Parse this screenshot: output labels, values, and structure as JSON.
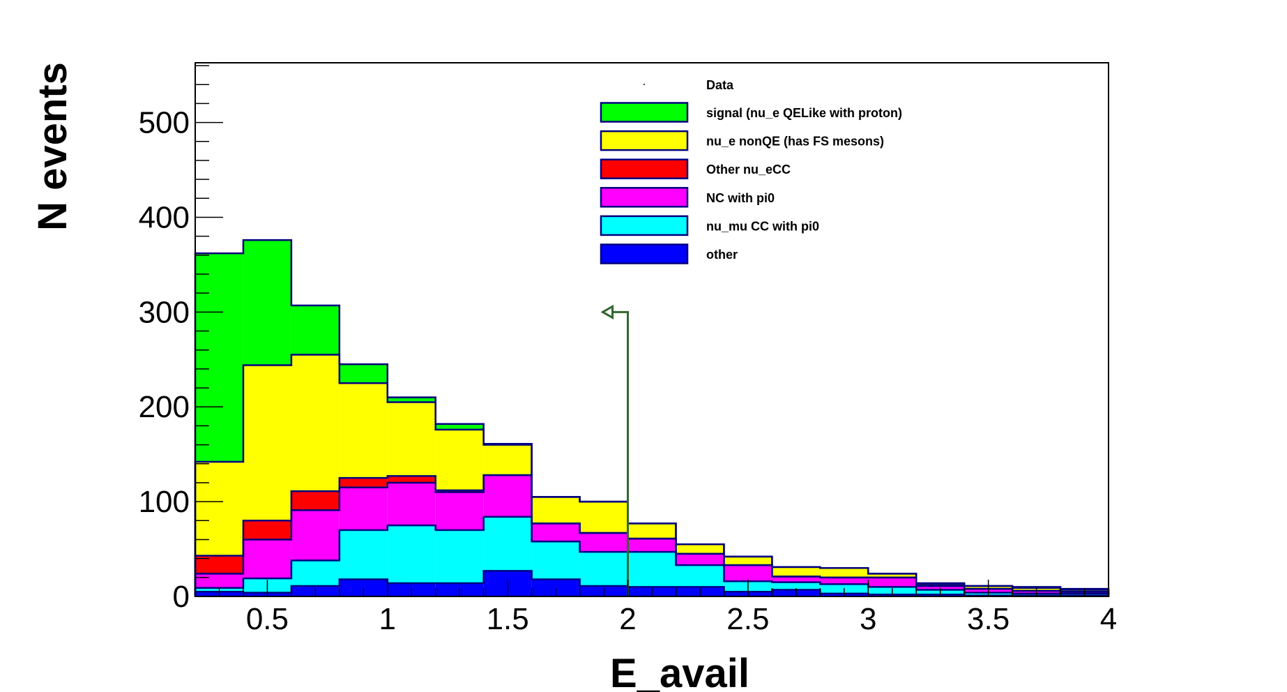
{
  "chart_data": {
    "type": "bar",
    "stacked": true,
    "histogram": true,
    "xlabel": "E_avail",
    "ylabel": "N events",
    "xlim": [
      0.2,
      4
    ],
    "ylim": [
      0,
      563
    ],
    "x_ticks": [
      0.5,
      1,
      1.5,
      2,
      2.5,
      3,
      3.5,
      4
    ],
    "x_tick_labels": [
      "0.5",
      "1",
      "1.5",
      "2",
      "2.5",
      "3",
      "3.5",
      "4"
    ],
    "y_ticks": [
      0,
      100,
      200,
      300,
      400,
      500
    ],
    "y_tick_labels": [
      "0",
      "100",
      "200",
      "300",
      "400",
      "500"
    ],
    "bin_edges": [
      0.2,
      0.4,
      0.6,
      0.8,
      1.0,
      1.2,
      1.4,
      1.6,
      1.8,
      2.0,
      2.2,
      2.4,
      2.6,
      2.8,
      3.0,
      3.2,
      3.4,
      3.6,
      3.8,
      4.0
    ],
    "legend_position": "top-right",
    "legend_marker_label": "Data",
    "series": [
      {
        "name": "other",
        "color": "#0000ff",
        "values": [
          5,
          4,
          11,
          18,
          14,
          14,
          27,
          18,
          11,
          10,
          10,
          5,
          7,
          3,
          2,
          2,
          1,
          1,
          1
        ]
      },
      {
        "name": "nu_mu CC with pi0",
        "color": "#00ffff",
        "values": [
          4,
          15,
          27,
          52,
          61,
          56,
          57,
          40,
          36,
          37,
          23,
          11,
          8,
          10,
          8,
          5,
          3,
          2,
          2
        ]
      },
      {
        "name": "NC with pi0",
        "color": "#ff00ff",
        "values": [
          15,
          41,
          53,
          45,
          45,
          40,
          44,
          19,
          20,
          14,
          12,
          17,
          6,
          7,
          10,
          4,
          4,
          3,
          2
        ]
      },
      {
        "name": "Other nu_eCC",
        "color": "#ff0000",
        "values": [
          19,
          20,
          20,
          10,
          7,
          2,
          0,
          0,
          0,
          0,
          0,
          0,
          0,
          0,
          0,
          0,
          0,
          0,
          0
        ]
      },
      {
        "name": "nu_e nonQE (has FS mesons)",
        "color": "#ffff00",
        "values": [
          99,
          164,
          144,
          100,
          78,
          64,
          32,
          28,
          33,
          16,
          10,
          9,
          10,
          10,
          4,
          2,
          3,
          3,
          2
        ]
      },
      {
        "name": "signal (nu_e QELike with proton)",
        "color": "#00ff00",
        "values": [
          220,
          132,
          52,
          20,
          5,
          6,
          1,
          0,
          0,
          0,
          0,
          0,
          0,
          0,
          0,
          1,
          0,
          1,
          1
        ]
      }
    ],
    "cut_arrow": {
      "x": 2.0,
      "y_top": 300,
      "direction": "left",
      "color": "#336633"
    },
    "outline_color": "#000080"
  }
}
